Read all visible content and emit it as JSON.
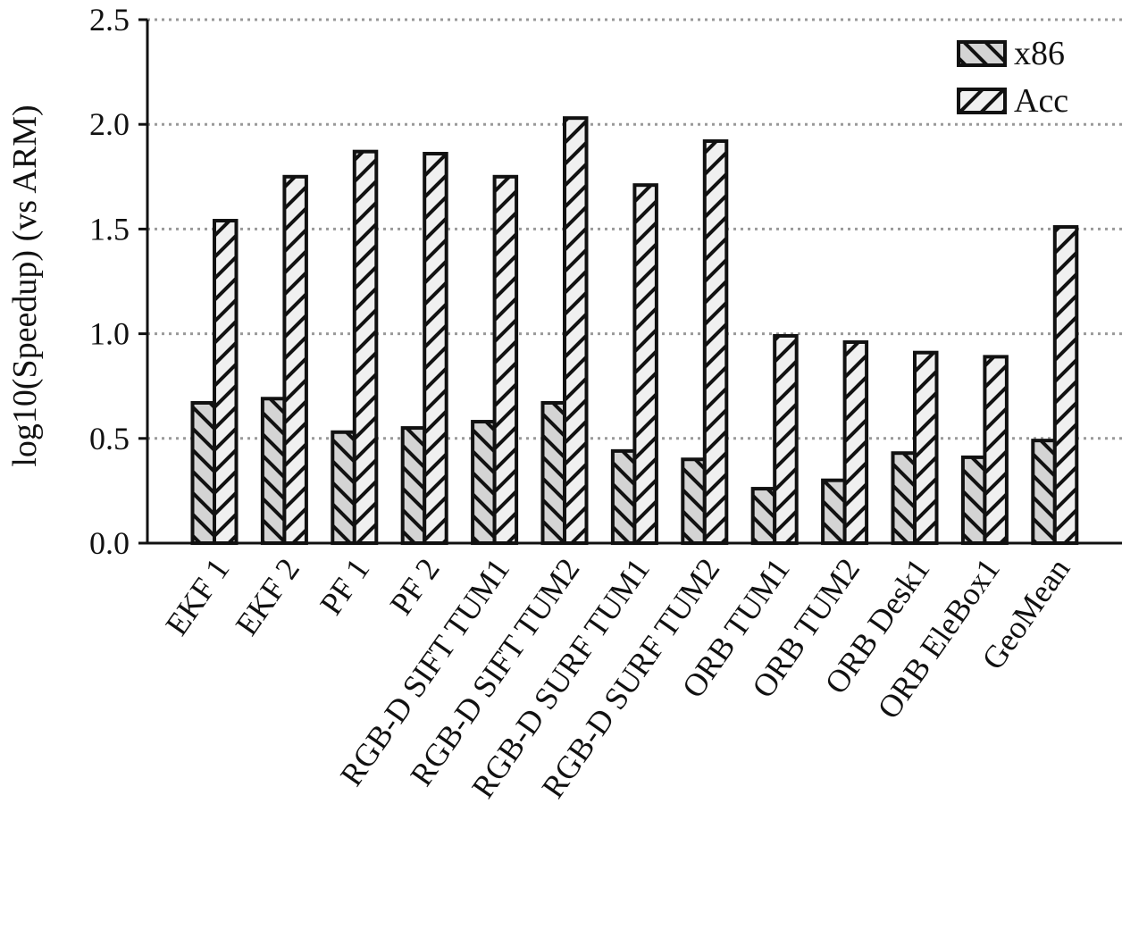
{
  "chart_data": {
    "type": "bar",
    "y_label": "log10(Speedup) (vs ARM)",
    "categories": [
      "EKF 1",
      "EKF 2",
      "PF 1",
      "PF 2",
      "RGB-D SIFT TUM1",
      "RGB-D SIFT TUM2",
      "RGB-D SURF TUM1",
      "RGB-D SURF TUM2",
      "ORB TUM1",
      "ORB TUM2",
      "ORB Desk1",
      "ORB EleBox1",
      "GeoMean"
    ],
    "series": [
      {
        "name": "x86",
        "color": "#d4d4d4",
        "hatch": "\\",
        "values": [
          0.67,
          0.69,
          0.53,
          0.55,
          0.58,
          0.67,
          0.44,
          0.4,
          0.26,
          0.3,
          0.43,
          0.41,
          0.49
        ]
      },
      {
        "name": "Acc",
        "color": "#f0f0f0",
        "hatch": "/",
        "values": [
          1.54,
          1.75,
          1.87,
          1.86,
          1.75,
          2.03,
          1.71,
          1.92,
          0.99,
          0.96,
          0.91,
          0.89,
          1.51
        ]
      }
    ],
    "ylim": [
      0,
      2.5
    ],
    "yticks": [
      {
        "value": 0,
        "label": "0.0"
      },
      0.5,
      {
        "value": 1,
        "label": "1.0"
      },
      1.5,
      {
        "value": 2,
        "label": "2.0"
      },
      2.5
    ],
    "grid": true,
    "legend": "upper right"
  }
}
